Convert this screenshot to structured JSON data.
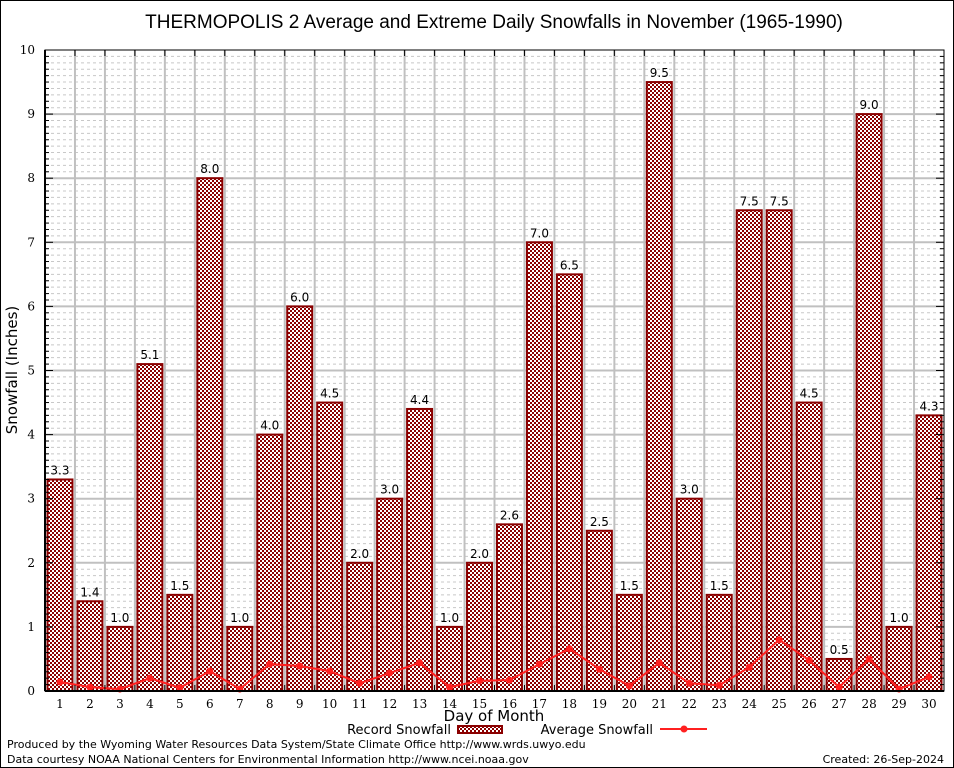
{
  "chart_data": {
    "type": "bar",
    "title": "THERMOPOLIS 2 Average and Extreme Daily Snowfalls in November (1965-1990)",
    "xlabel": "Day of Month",
    "ylabel": "Snowfall (Inches)",
    "ylim": [
      0,
      10
    ],
    "yticks": [
      "0",
      "1",
      "2",
      "3",
      "4",
      "5",
      "6",
      "7",
      "8",
      "9",
      "10"
    ],
    "categories": [
      "1",
      "2",
      "3",
      "4",
      "5",
      "6",
      "7",
      "8",
      "9",
      "10",
      "11",
      "12",
      "13",
      "14",
      "15",
      "16",
      "17",
      "18",
      "19",
      "20",
      "21",
      "22",
      "23",
      "24",
      "25",
      "26",
      "27",
      "28",
      "29",
      "30"
    ],
    "grid": true,
    "legend_position": "bottom",
    "series": [
      {
        "name": "Record Snowfall",
        "kind": "bar",
        "color": "#8b0000",
        "values": [
          3.3,
          1.4,
          1.0,
          5.1,
          1.5,
          8.0,
          1.0,
          4.0,
          6.0,
          4.5,
          2.0,
          3.0,
          4.4,
          1.0,
          2.0,
          2.6,
          7.0,
          6.5,
          2.5,
          1.5,
          9.5,
          3.0,
          1.5,
          7.5,
          7.5,
          4.5,
          0.5,
          9.0,
          1.0,
          4.3
        ],
        "labels": [
          "3.3",
          "1.4",
          "1.0",
          "5.1",
          "1.5",
          "8.0",
          "1.0",
          "4.0",
          "6.0",
          "4.5",
          "2.0",
          "3.0",
          "4.4",
          "1.0",
          "2.0",
          "2.6",
          "7.0",
          "6.5",
          "2.5",
          "1.5",
          "9.5",
          "3.0",
          "1.5",
          "7.5",
          "7.5",
          "4.5",
          "0.5",
          "9.0",
          "1.0",
          "4.3"
        ]
      },
      {
        "name": "Average Snowfall",
        "kind": "line",
        "color": "#ff2020",
        "values": [
          0.14,
          0.06,
          0.03,
          0.2,
          0.05,
          0.31,
          0.03,
          0.42,
          0.39,
          0.31,
          0.12,
          0.28,
          0.44,
          0.06,
          0.16,
          0.17,
          0.42,
          0.66,
          0.34,
          0.08,
          0.44,
          0.12,
          0.09,
          0.37,
          0.8,
          0.48,
          0.06,
          0.5,
          0.03,
          0.22
        ]
      }
    ]
  },
  "footer": {
    "line1": "Produced by the Wyoming Water Resources Data System/State Climate Office http://www.wrds.uwyo.edu",
    "line2": "Data courtesy NOAA National Centers for Environmental Information http://www.ncei.noaa.gov",
    "created": "Created: 26-Sep-2024"
  }
}
